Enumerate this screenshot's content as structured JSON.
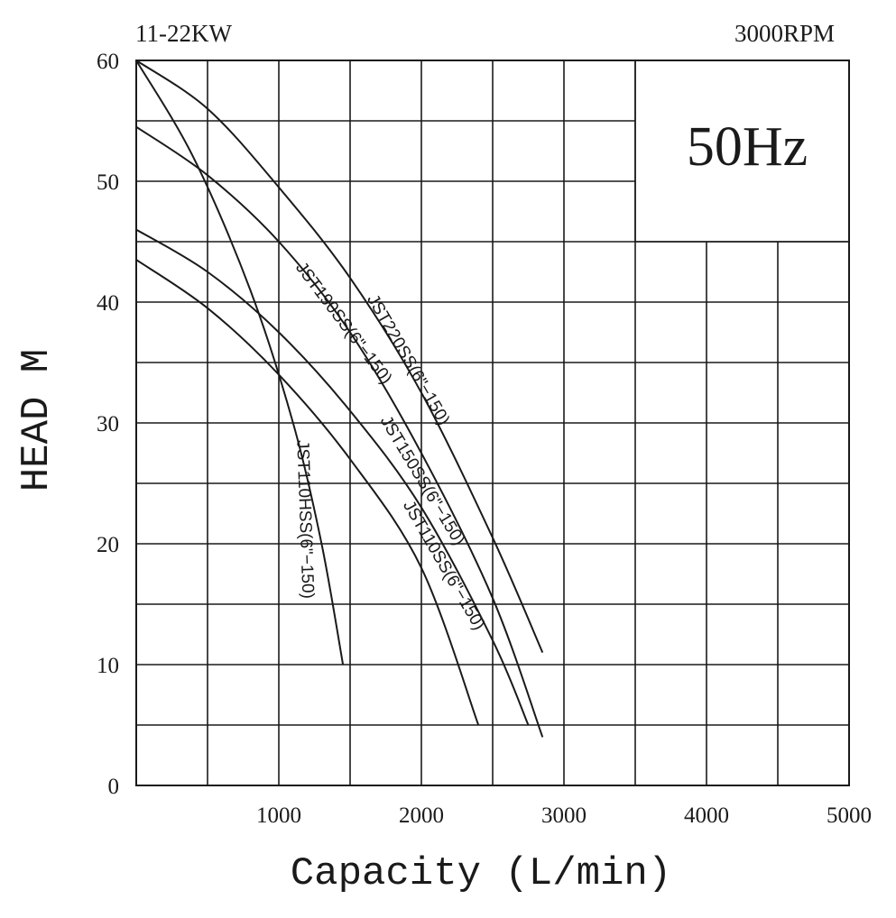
{
  "chart_data": {
    "type": "line",
    "header_left": "11-22KW",
    "header_right": "3000RPM",
    "frequency_label": "50Hz",
    "xlabel": "Capacity (L/min)",
    "ylabel": "HEAD M",
    "xlim": [
      0,
      5000
    ],
    "ylim": [
      0,
      60
    ],
    "x_ticks": [
      1000,
      2000,
      3000,
      4000,
      5000
    ],
    "x_tick_labels": [
      "1000",
      "2000",
      "3000",
      "4000",
      "5000"
    ],
    "y_ticks": [
      0,
      10,
      20,
      30,
      40,
      50,
      60
    ],
    "y_tick_labels": [
      "0",
      "10",
      "20",
      "30",
      "40",
      "50",
      "60"
    ],
    "grid": true,
    "series": [
      {
        "name": "JST220SS(6\"−150)",
        "x": [
          0,
          500,
          1000,
          1500,
          2000,
          2500,
          2850
        ],
        "y": [
          60,
          56,
          49.5,
          42,
          32.5,
          20.5,
          11
        ]
      },
      {
        "name": "JST190SS(6\"−150)",
        "x": [
          0,
          500,
          1000,
          1500,
          2000,
          2500,
          2850
        ],
        "y": [
          54.5,
          50.5,
          45,
          37.5,
          27.5,
          15.5,
          4
        ]
      },
      {
        "name": "JST150SS(6\"−150)",
        "x": [
          0,
          500,
          1000,
          1500,
          2000,
          2500,
          2750
        ],
        "y": [
          46,
          42.5,
          37.5,
          31,
          23,
          12,
          5
        ]
      },
      {
        "name": "JST110SS(6\"−150)",
        "x": [
          0,
          500,
          1000,
          1500,
          2000,
          2400
        ],
        "y": [
          43.5,
          39.5,
          34,
          27,
          18,
          5
        ]
      },
      {
        "name": "JST110HSS(6\"−150)",
        "x": [
          0,
          400,
          800,
          1100,
          1300,
          1450
        ],
        "y": [
          60,
          52,
          41,
          30,
          20,
          10
        ]
      }
    ]
  }
}
